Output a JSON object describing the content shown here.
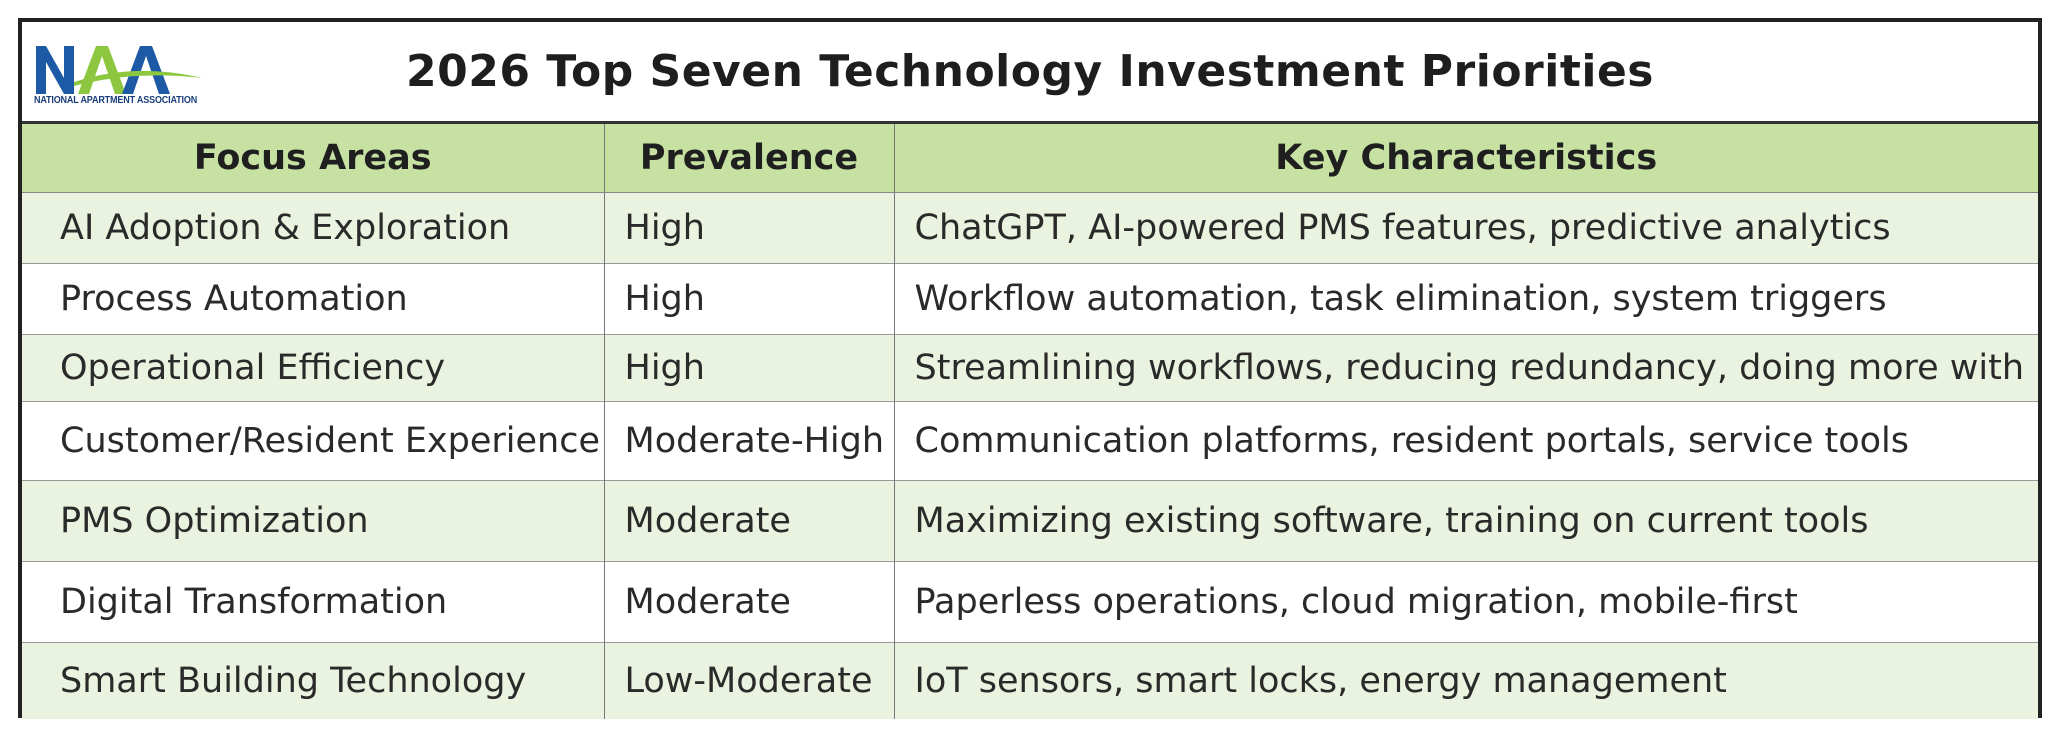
{
  "logo": {
    "letters": "NAA",
    "tagline": "NATIONAL APARTMENT ASSOCIATION",
    "colors": {
      "blue": "#1c5aa6",
      "green": "#8dc63f"
    }
  },
  "title": "2026 Top Seven Technology Investment Priorities",
  "table": {
    "headers": [
      "Focus Areas",
      "Prevalence",
      "Key Characteristics"
    ],
    "header_color": "#c6e1a2",
    "shade_color": "#eaf3df",
    "rows": [
      {
        "focus": "AI Adoption & Exploration",
        "prevalence": "High",
        "characteristics": "ChatGPT, AI-powered PMS features, predictive analytics"
      },
      {
        "focus": "Process Automation",
        "prevalence": "High",
        "characteristics": "Workflow automation, task elimination, system triggers"
      },
      {
        "focus": "Operational Efficiency",
        "prevalence": "High",
        "characteristics": "Streamlining workflows, reducing redundancy, doing more with less"
      },
      {
        "focus": "Customer/Resident Experience",
        "prevalence": "Moderate-High",
        "characteristics": "Communication platforms, resident portals, service tools"
      },
      {
        "focus": "PMS Optimization",
        "prevalence": "Moderate",
        "characteristics": "Maximizing existing software, training on current tools"
      },
      {
        "focus": "Digital Transformation",
        "prevalence": "Moderate",
        "characteristics": "Paperless operations, cloud migration, mobile-first"
      },
      {
        "focus": "Smart Building Technology",
        "prevalence": "Low-Moderate",
        "characteristics": "IoT sensors, smart locks, energy management"
      }
    ]
  }
}
